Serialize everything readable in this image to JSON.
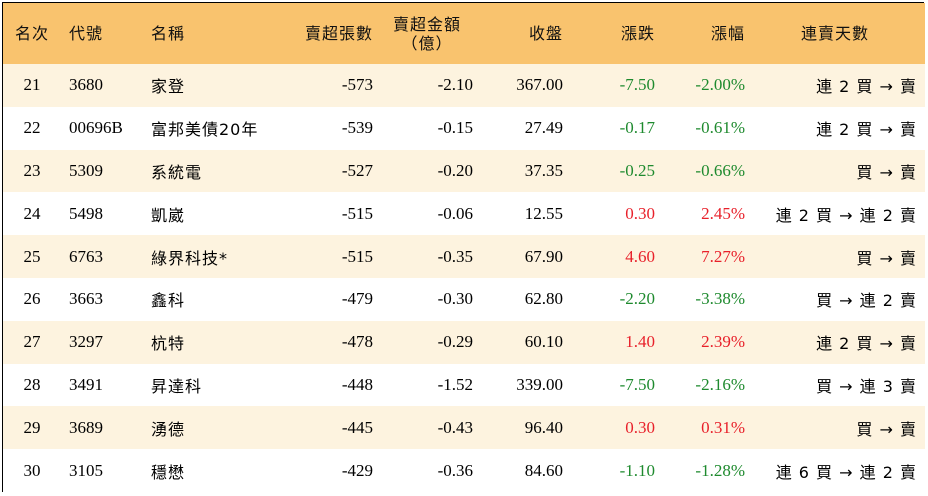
{
  "colors": {
    "header_bg": "#f9c36e",
    "row_alt_bg": "#fdf3df",
    "up": "#e8202a",
    "down": "#1e8a2e"
  },
  "headers": {
    "rank": "名次",
    "code": "代號",
    "name": "名稱",
    "net_sell_shares": "賣超張數",
    "net_sell_amount_line1": "賣超金額",
    "net_sell_amount_line2": "（億）",
    "close": "收盤",
    "change": "漲跌",
    "change_pct": "漲幅",
    "streak": "連賣天數"
  },
  "rows": [
    {
      "rank": "21",
      "code": "3680",
      "name": "家登",
      "shares": "-573",
      "amount": "-2.10",
      "close": "367.00",
      "change": "-7.50",
      "pct": "-2.00%",
      "streak": "連 2 買 → 賣",
      "dir": "down"
    },
    {
      "rank": "22",
      "code": "00696B",
      "name": "富邦美債20年",
      "shares": "-539",
      "amount": "-0.15",
      "close": "27.49",
      "change": "-0.17",
      "pct": "-0.61%",
      "streak": "連 2 買 → 賣",
      "dir": "down"
    },
    {
      "rank": "23",
      "code": "5309",
      "name": "系統電",
      "shares": "-527",
      "amount": "-0.20",
      "close": "37.35",
      "change": "-0.25",
      "pct": "-0.66%",
      "streak": "買 → 賣",
      "dir": "down"
    },
    {
      "rank": "24",
      "code": "5498",
      "name": "凱崴",
      "shares": "-515",
      "amount": "-0.06",
      "close": "12.55",
      "change": "0.30",
      "pct": "2.45%",
      "streak": "連 2 買 → 連 2 賣",
      "dir": "up"
    },
    {
      "rank": "25",
      "code": "6763",
      "name": "綠界科技*",
      "shares": "-515",
      "amount": "-0.35",
      "close": "67.90",
      "change": "4.60",
      "pct": "7.27%",
      "streak": "買 → 賣",
      "dir": "up"
    },
    {
      "rank": "26",
      "code": "3663",
      "name": "鑫科",
      "shares": "-479",
      "amount": "-0.30",
      "close": "62.80",
      "change": "-2.20",
      "pct": "-3.38%",
      "streak": "買 → 連 2 賣",
      "dir": "down"
    },
    {
      "rank": "27",
      "code": "3297",
      "name": "杭特",
      "shares": "-478",
      "amount": "-0.29",
      "close": "60.10",
      "change": "1.40",
      "pct": "2.39%",
      "streak": "連 2 買 → 賣",
      "dir": "up"
    },
    {
      "rank": "28",
      "code": "3491",
      "name": "昇達科",
      "shares": "-448",
      "amount": "-1.52",
      "close": "339.00",
      "change": "-7.50",
      "pct": "-2.16%",
      "streak": "買 → 連 3 賣",
      "dir": "down"
    },
    {
      "rank": "29",
      "code": "3689",
      "name": "湧德",
      "shares": "-445",
      "amount": "-0.43",
      "close": "96.40",
      "change": "0.30",
      "pct": "0.31%",
      "streak": "買 → 賣",
      "dir": "up"
    },
    {
      "rank": "30",
      "code": "3105",
      "name": "穩懋",
      "shares": "-429",
      "amount": "-0.36",
      "close": "84.60",
      "change": "-1.10",
      "pct": "-1.28%",
      "streak": "連 6 買 → 連 2 賣",
      "dir": "down"
    }
  ]
}
